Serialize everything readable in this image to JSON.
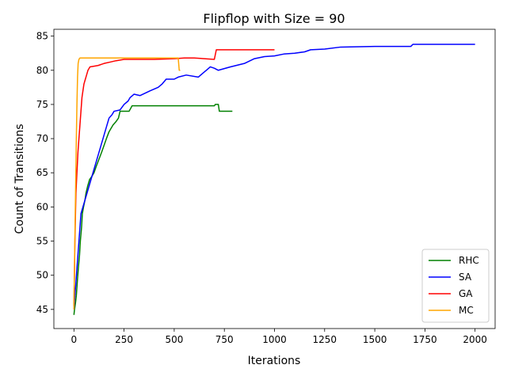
{
  "chart_data": {
    "type": "line",
    "title": "Flipflop with Size = 90",
    "xlabel": "Iterations",
    "ylabel": "Count of Transitions",
    "xlim": [
      -100,
      2100
    ],
    "ylim": [
      42.2,
      86
    ],
    "xticks": [
      0,
      250,
      500,
      750,
      1000,
      1250,
      1500,
      1750,
      2000
    ],
    "yticks": [
      45,
      50,
      55,
      60,
      65,
      70,
      75,
      80,
      85
    ],
    "grid": false,
    "legend_position": "lower-right",
    "series": [
      {
        "name": "RHC",
        "color": "#008000",
        "points": [
          [
            0,
            44.2
          ],
          [
            3,
            45
          ],
          [
            8,
            46
          ],
          [
            12,
            47
          ],
          [
            18,
            49.5
          ],
          [
            22,
            51
          ],
          [
            28,
            53
          ],
          [
            32,
            55
          ],
          [
            38,
            57
          ],
          [
            42,
            59
          ],
          [
            48,
            60
          ],
          [
            55,
            61
          ],
          [
            60,
            62
          ],
          [
            68,
            63
          ],
          [
            78,
            64
          ],
          [
            90,
            64.5
          ],
          [
            100,
            65
          ],
          [
            112,
            66
          ],
          [
            125,
            67
          ],
          [
            138,
            68
          ],
          [
            150,
            69
          ],
          [
            162,
            70
          ],
          [
            175,
            71
          ],
          [
            185,
            71.5
          ],
          [
            195,
            72
          ],
          [
            210,
            72.5
          ],
          [
            222,
            73
          ],
          [
            230,
            74
          ],
          [
            250,
            74
          ],
          [
            275,
            74
          ],
          [
            290,
            74.8
          ],
          [
            400,
            74.8
          ],
          [
            500,
            74.8
          ],
          [
            600,
            74.8
          ],
          [
            700,
            74.8
          ],
          [
            705,
            75
          ],
          [
            720,
            75
          ],
          [
            725,
            74
          ],
          [
            790,
            74
          ]
        ]
      },
      {
        "name": "SA",
        "color": "#0000ff",
        "points": [
          [
            0,
            45
          ],
          [
            5,
            47
          ],
          [
            10,
            49
          ],
          [
            15,
            51
          ],
          [
            20,
            53
          ],
          [
            25,
            55
          ],
          [
            30,
            57
          ],
          [
            35,
            59
          ],
          [
            45,
            60
          ],
          [
            55,
            61
          ],
          [
            65,
            62
          ],
          [
            75,
            63
          ],
          [
            85,
            64
          ],
          [
            95,
            65
          ],
          [
            105,
            66
          ],
          [
            115,
            67
          ],
          [
            125,
            68
          ],
          [
            135,
            69
          ],
          [
            145,
            70
          ],
          [
            155,
            71
          ],
          [
            165,
            72
          ],
          [
            175,
            73
          ],
          [
            190,
            73.5
          ],
          [
            200,
            74
          ],
          [
            230,
            74.2
          ],
          [
            250,
            75
          ],
          [
            270,
            75.5
          ],
          [
            280,
            76
          ],
          [
            300,
            76.5
          ],
          [
            330,
            76.3
          ],
          [
            380,
            77
          ],
          [
            420,
            77.5
          ],
          [
            440,
            78
          ],
          [
            460,
            78.7
          ],
          [
            500,
            78.7
          ],
          [
            520,
            79
          ],
          [
            560,
            79.3
          ],
          [
            620,
            79
          ],
          [
            640,
            79.5
          ],
          [
            660,
            80
          ],
          [
            680,
            80.5
          ],
          [
            700,
            80.3
          ],
          [
            720,
            80
          ],
          [
            780,
            80.5
          ],
          [
            850,
            81
          ],
          [
            900,
            81.7
          ],
          [
            950,
            82
          ],
          [
            1000,
            82.1
          ],
          [
            1050,
            82.4
          ],
          [
            1100,
            82.5
          ],
          [
            1150,
            82.7
          ],
          [
            1180,
            83
          ],
          [
            1250,
            83.1
          ],
          [
            1330,
            83.4
          ],
          [
            1500,
            83.5
          ],
          [
            1680,
            83.5
          ],
          [
            1690,
            83.8
          ],
          [
            2000,
            83.8
          ]
        ]
      },
      {
        "name": "GA",
        "color": "#ff0000",
        "points": [
          [
            0,
            45.5
          ],
          [
            5,
            55
          ],
          [
            10,
            62
          ],
          [
            15,
            65
          ],
          [
            20,
            68
          ],
          [
            25,
            70
          ],
          [
            30,
            72
          ],
          [
            35,
            74
          ],
          [
            40,
            76
          ],
          [
            45,
            77
          ],
          [
            50,
            78
          ],
          [
            55,
            78.5
          ],
          [
            60,
            79
          ],
          [
            70,
            80
          ],
          [
            80,
            80.5
          ],
          [
            100,
            80.6
          ],
          [
            120,
            80.7
          ],
          [
            150,
            81
          ],
          [
            180,
            81.2
          ],
          [
            210,
            81.4
          ],
          [
            250,
            81.6
          ],
          [
            300,
            81.6
          ],
          [
            400,
            81.6
          ],
          [
            500,
            81.7
          ],
          [
            550,
            81.8
          ],
          [
            600,
            81.8
          ],
          [
            700,
            81.6
          ],
          [
            710,
            83
          ],
          [
            800,
            83
          ],
          [
            900,
            83
          ],
          [
            1000,
            83
          ]
        ]
      },
      {
        "name": "MC",
        "color": "#ffa500",
        "points": [
          [
            0,
            45
          ],
          [
            3,
            52
          ],
          [
            6,
            58
          ],
          [
            9,
            64
          ],
          [
            12,
            70
          ],
          [
            15,
            75
          ],
          [
            18,
            79
          ],
          [
            21,
            81
          ],
          [
            25,
            81.6
          ],
          [
            30,
            81.8
          ],
          [
            40,
            81.8
          ],
          [
            100,
            81.8
          ],
          [
            200,
            81.8
          ],
          [
            300,
            81.8
          ],
          [
            400,
            81.8
          ],
          [
            500,
            81.8
          ],
          [
            520,
            81.8
          ],
          [
            525,
            80
          ],
          [
            530,
            80
          ]
        ]
      }
    ]
  }
}
